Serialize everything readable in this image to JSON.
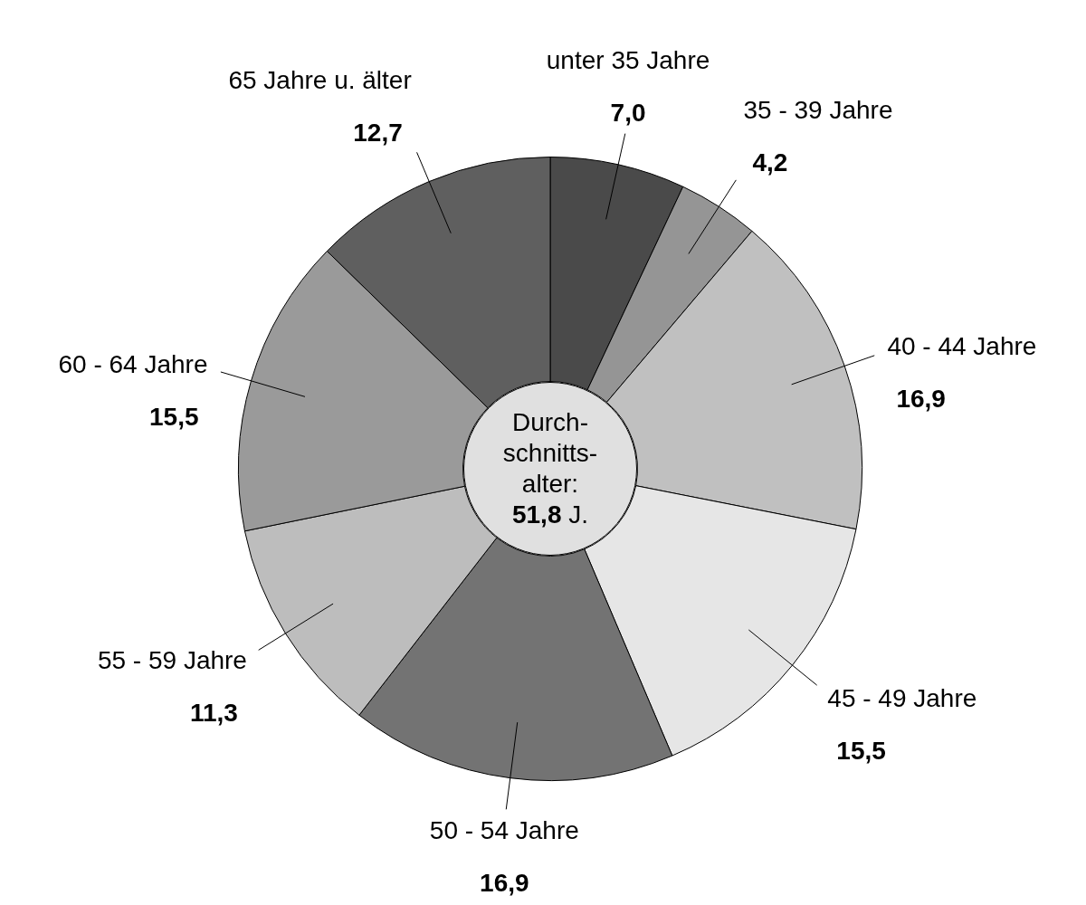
{
  "chart_data": {
    "type": "donut",
    "categories": [
      "unter 35 Jahre",
      "35 - 39 Jahre",
      "40 - 44 Jahre",
      "45 - 49 Jahre",
      "50 - 54 Jahre",
      "55 - 59 Jahre",
      "60 - 64 Jahre",
      "65 Jahre u. älter"
    ],
    "values": [
      7.0,
      4.2,
      16.9,
      15.5,
      16.9,
      11.3,
      15.5,
      12.7
    ],
    "value_labels": [
      "7,0",
      "4,2",
      "16,9",
      "15,5",
      "16,9",
      "11,3",
      "15,5",
      "12,7"
    ],
    "colors": [
      "#4a4a4a",
      "#959595",
      "#c0c0c0",
      "#e6e6e6",
      "#737373",
      "#bdbdbd",
      "#9a9a9a",
      "#5f5f5f"
    ],
    "annotations": [
      "Durch-\nschnitts-\nalter:\n51,8 J."
    ],
    "legend": false
  }
}
